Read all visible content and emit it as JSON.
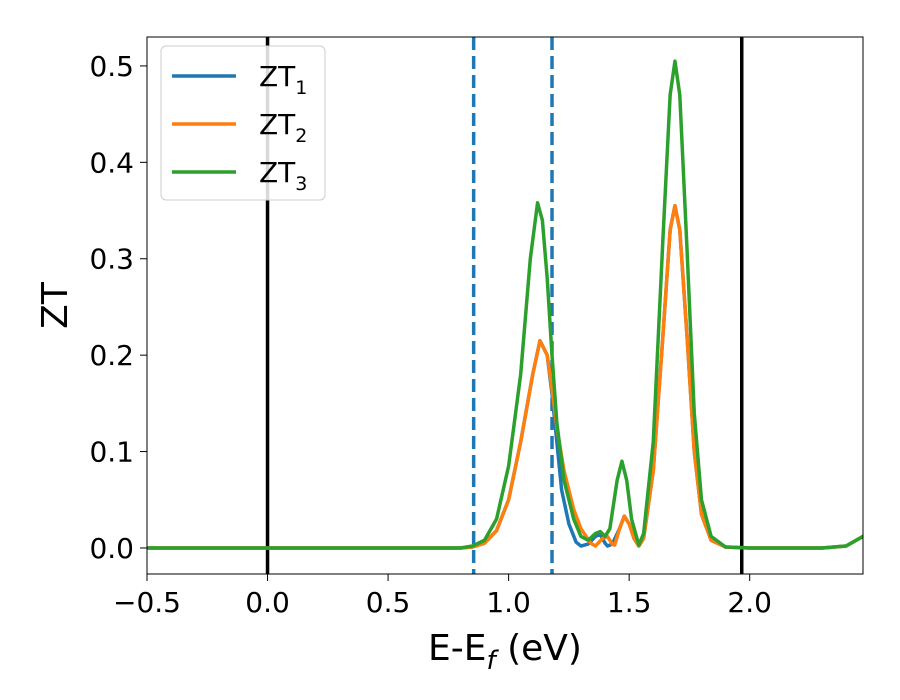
{
  "chart_data": {
    "type": "line",
    "xlabel": "E-E",
    "xlabel_subscript": "f",
    "xlabel_unit": " (eV)",
    "ylabel": "ZT",
    "xlim": [
      -0.5,
      2.47
    ],
    "ylim": [
      -0.027,
      0.53
    ],
    "xticks": [
      -0.5,
      0.0,
      0.5,
      1.0,
      1.5,
      2.0
    ],
    "xtick_labels": [
      "−0.5",
      "0.0",
      "0.5",
      "1.0",
      "1.5",
      "2.0"
    ],
    "yticks": [
      0.0,
      0.1,
      0.2,
      0.3,
      0.4,
      0.5
    ],
    "ytick_labels": [
      "0.0",
      "0.1",
      "0.2",
      "0.3",
      "0.4",
      "0.5"
    ],
    "grid": false,
    "legend_position": "top-left",
    "vertical_lines": [
      {
        "x": 0.0,
        "style": "solid",
        "color": "#000000"
      },
      {
        "x": 1.967,
        "style": "solid",
        "color": "#000000"
      },
      {
        "x": 0.855,
        "style": "dashed",
        "color": "#1f77b4"
      },
      {
        "x": 1.18,
        "style": "dashed",
        "color": "#1f77b4"
      }
    ],
    "series": [
      {
        "name": "ZT",
        "subscript": "1",
        "color": "#1f77b4",
        "points": [
          [
            -0.5,
            0
          ],
          [
            0.8,
            0
          ],
          [
            0.85,
            0.001
          ],
          [
            0.9,
            0.005
          ],
          [
            0.95,
            0.018
          ],
          [
            1.0,
            0.05
          ],
          [
            1.05,
            0.11
          ],
          [
            1.1,
            0.18
          ],
          [
            1.13,
            0.215
          ],
          [
            1.16,
            0.2
          ],
          [
            1.18,
            0.16
          ],
          [
            1.2,
            0.11
          ],
          [
            1.22,
            0.06
          ],
          [
            1.25,
            0.025
          ],
          [
            1.28,
            0.006
          ],
          [
            1.3,
            0.002
          ],
          [
            1.33,
            0.004
          ],
          [
            1.36,
            0.012
          ],
          [
            1.38,
            0.014
          ],
          [
            1.4,
            0.005
          ],
          [
            1.41,
            0.002
          ],
          [
            1.43,
            0.004
          ],
          [
            1.46,
            0.02
          ],
          [
            1.48,
            0.033
          ],
          [
            1.5,
            0.025
          ],
          [
            1.52,
            0.01
          ],
          [
            1.54,
            0.002
          ],
          [
            1.56,
            0.01
          ],
          [
            1.6,
            0.08
          ],
          [
            1.64,
            0.22
          ],
          [
            1.67,
            0.33
          ],
          [
            1.69,
            0.355
          ],
          [
            1.71,
            0.33
          ],
          [
            1.74,
            0.22
          ],
          [
            1.77,
            0.1
          ],
          [
            1.8,
            0.035
          ],
          [
            1.84,
            0.008
          ],
          [
            1.9,
            0.001
          ],
          [
            2.0,
            0
          ],
          [
            2.3,
            0
          ],
          [
            2.4,
            0.002
          ],
          [
            2.47,
            0.012
          ]
        ]
      },
      {
        "name": "ZT",
        "subscript": "2",
        "color": "#ff7f0e",
        "points": [
          [
            -0.5,
            0
          ],
          [
            0.8,
            0
          ],
          [
            0.85,
            0.001
          ],
          [
            0.9,
            0.005
          ],
          [
            0.95,
            0.018
          ],
          [
            1.0,
            0.05
          ],
          [
            1.05,
            0.11
          ],
          [
            1.1,
            0.18
          ],
          [
            1.13,
            0.215
          ],
          [
            1.16,
            0.2
          ],
          [
            1.18,
            0.165
          ],
          [
            1.2,
            0.125
          ],
          [
            1.23,
            0.08
          ],
          [
            1.27,
            0.04
          ],
          [
            1.3,
            0.02
          ],
          [
            1.34,
            0.005
          ],
          [
            1.36,
            0.002
          ],
          [
            1.39,
            0.01
          ],
          [
            1.41,
            0.012
          ],
          [
            1.43,
            0.004
          ],
          [
            1.44,
            0.003
          ],
          [
            1.46,
            0.02
          ],
          [
            1.48,
            0.033
          ],
          [
            1.5,
            0.025
          ],
          [
            1.52,
            0.01
          ],
          [
            1.54,
            0.002
          ],
          [
            1.56,
            0.01
          ],
          [
            1.6,
            0.08
          ],
          [
            1.64,
            0.22
          ],
          [
            1.67,
            0.33
          ],
          [
            1.69,
            0.355
          ],
          [
            1.71,
            0.33
          ],
          [
            1.74,
            0.22
          ],
          [
            1.77,
            0.1
          ],
          [
            1.8,
            0.035
          ],
          [
            1.84,
            0.008
          ],
          [
            1.9,
            0.001
          ],
          [
            2.0,
            0
          ],
          [
            2.3,
            0
          ],
          [
            2.4,
            0.002
          ],
          [
            2.47,
            0.012
          ]
        ]
      },
      {
        "name": "ZT",
        "subscript": "3",
        "color": "#2ca02c",
        "points": [
          [
            -0.5,
            0
          ],
          [
            0.8,
            0
          ],
          [
            0.85,
            0.002
          ],
          [
            0.9,
            0.008
          ],
          [
            0.95,
            0.03
          ],
          [
            1.0,
            0.085
          ],
          [
            1.05,
            0.18
          ],
          [
            1.09,
            0.3
          ],
          [
            1.12,
            0.358
          ],
          [
            1.14,
            0.34
          ],
          [
            1.16,
            0.28
          ],
          [
            1.18,
            0.2
          ],
          [
            1.2,
            0.13
          ],
          [
            1.23,
            0.07
          ],
          [
            1.27,
            0.03
          ],
          [
            1.3,
            0.012
          ],
          [
            1.33,
            0.008
          ],
          [
            1.36,
            0.015
          ],
          [
            1.38,
            0.017
          ],
          [
            1.4,
            0.012
          ],
          [
            1.42,
            0.02
          ],
          [
            1.45,
            0.07
          ],
          [
            1.47,
            0.09
          ],
          [
            1.49,
            0.07
          ],
          [
            1.51,
            0.03
          ],
          [
            1.54,
            0.003
          ],
          [
            1.56,
            0.015
          ],
          [
            1.6,
            0.11
          ],
          [
            1.64,
            0.32
          ],
          [
            1.67,
            0.47
          ],
          [
            1.69,
            0.505
          ],
          [
            1.71,
            0.47
          ],
          [
            1.74,
            0.31
          ],
          [
            1.77,
            0.14
          ],
          [
            1.8,
            0.05
          ],
          [
            1.84,
            0.012
          ],
          [
            1.9,
            0.001
          ],
          [
            2.0,
            0
          ],
          [
            2.3,
            0
          ],
          [
            2.4,
            0.002
          ],
          [
            2.47,
            0.012
          ]
        ]
      }
    ]
  }
}
